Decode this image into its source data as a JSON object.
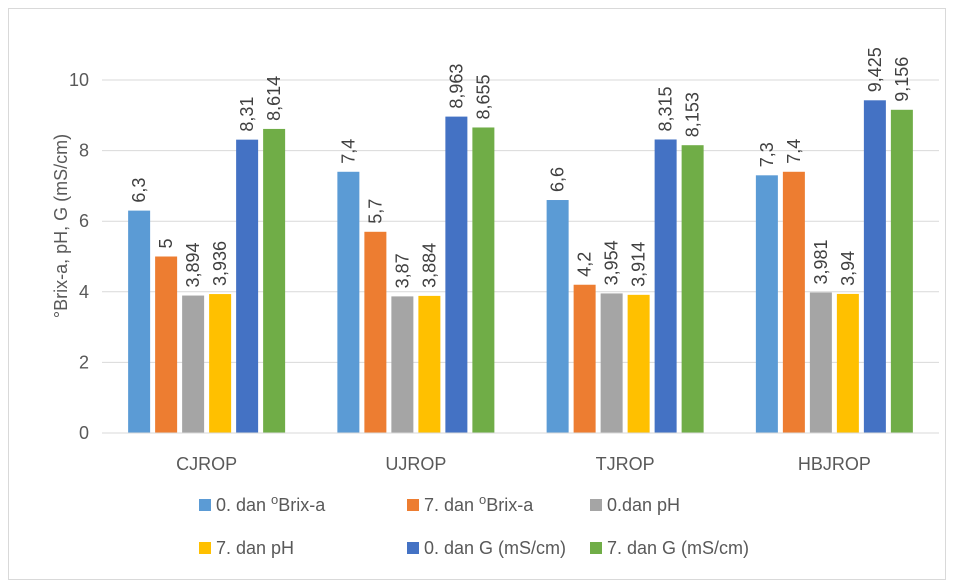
{
  "chart_data": {
    "type": "bar",
    "title": "",
    "xlabel": "",
    "ylabel": "°Brix-a, pH, G (mS/cm)",
    "ylim": [
      0,
      10
    ],
    "yticks": [
      0,
      2,
      4,
      6,
      8,
      10
    ],
    "grid": true,
    "legend_position": "bottom",
    "categories": [
      "CJROP",
      "UJROP",
      "TJROP",
      "HBJROP"
    ],
    "series": [
      {
        "name": "0. dan °Brix-a",
        "legend_prefix": "0. dan ",
        "legend_sup": "o",
        "legend_suffix": "Brix-a",
        "color": "#5b9bd5",
        "values": [
          6.3,
          7.4,
          6.6,
          7.3
        ],
        "labels": [
          "6,3",
          "7,4",
          "6,6",
          "7,3"
        ]
      },
      {
        "name": "7. dan °Brix-a",
        "legend_prefix": "7. dan ",
        "legend_sup": "o",
        "legend_suffix": "Brix-a",
        "color": "#ed7d31",
        "values": [
          5,
          5.7,
          4.2,
          7.4
        ],
        "labels": [
          "5",
          "5,7",
          "4,2",
          "7,4"
        ]
      },
      {
        "name": "0.dan pH",
        "legend_prefix": "0.dan pH",
        "legend_sup": "",
        "legend_suffix": "",
        "color": "#a5a5a5",
        "values": [
          3.894,
          3.87,
          3.954,
          3.981
        ],
        "labels": [
          "3,894",
          "3,87",
          "3,954",
          "3,981"
        ]
      },
      {
        "name": "7. dan pH",
        "legend_prefix": "7. dan pH",
        "legend_sup": "",
        "legend_suffix": "",
        "color": "#ffc000",
        "values": [
          3.936,
          3.884,
          3.914,
          3.94
        ],
        "labels": [
          "3,936",
          "3,884",
          "3,914",
          "3,94"
        ]
      },
      {
        "name": "0. dan G (mS/cm)",
        "legend_prefix": "0. dan G (mS/cm)",
        "legend_sup": "",
        "legend_suffix": "",
        "color": "#4472c4",
        "values": [
          8.31,
          8.963,
          8.315,
          9.425
        ],
        "labels": [
          "8,31",
          "8,963",
          "8,315",
          "9,425"
        ]
      },
      {
        "name": "7. dan G (mS/cm)",
        "legend_prefix": "7. dan G (mS/cm)",
        "legend_sup": "",
        "legend_suffix": "",
        "color": "#70ad47",
        "values": [
          8.614,
          8.655,
          8.153,
          9.156
        ],
        "labels": [
          "8,614",
          "8,655",
          "8,153",
          "9,156"
        ]
      }
    ]
  }
}
